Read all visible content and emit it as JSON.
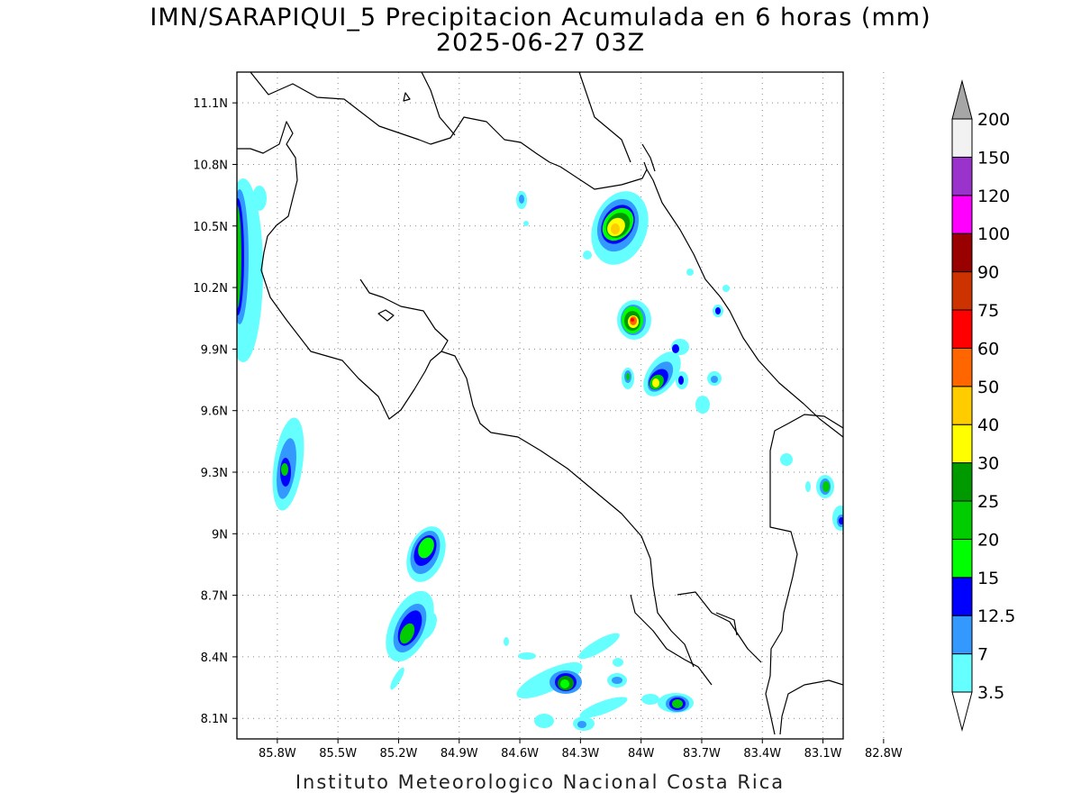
{
  "title": {
    "line1": "IMN/SARAPIQUI_5 Precipitacion Acumulada en 6 horas (mm)",
    "line2": "2025-06-27 03Z"
  },
  "footer": "Instituto Meteorologico Nacional Costa Rica",
  "map": {
    "lon_range": [
      -86.0,
      -83.0
    ],
    "lat_range": [
      8.0,
      11.25
    ],
    "lon_ticks": [
      {
        "v": -85.8,
        "label": "85.8W"
      },
      {
        "v": -85.5,
        "label": "85.5W"
      },
      {
        "v": -85.2,
        "label": "85.2W"
      },
      {
        "v": -84.9,
        "label": "84.9W"
      },
      {
        "v": -84.6,
        "label": "84.6W"
      },
      {
        "v": -84.3,
        "label": "84.3W"
      },
      {
        "v": -84.0,
        "label": "84W"
      },
      {
        "v": -83.7,
        "label": "83.7W"
      },
      {
        "v": -83.4,
        "label": "83.4W"
      },
      {
        "v": -83.1,
        "label": "83.1W"
      },
      {
        "v": -82.8,
        "label": "82.8W"
      }
    ],
    "lat_ticks": [
      {
        "v": 11.1,
        "label": "11.1N"
      },
      {
        "v": 10.8,
        "label": "10.8N"
      },
      {
        "v": 10.5,
        "label": "10.5N"
      },
      {
        "v": 10.2,
        "label": "10.2N"
      },
      {
        "v": 9.9,
        "label": "9.9N"
      },
      {
        "v": 9.6,
        "label": "9.6N"
      },
      {
        "v": 9.3,
        "label": "9.3N"
      },
      {
        "v": 9.0,
        "label": "9N"
      },
      {
        "v": 8.7,
        "label": "8.7N"
      },
      {
        "v": 8.4,
        "label": "8.4N"
      },
      {
        "v": 8.1,
        "label": "8.1N"
      }
    ],
    "grid": "dotted"
  },
  "colorbar": {
    "labels": [
      "3.5",
      "7",
      "12.5",
      "15",
      "20",
      "25",
      "30",
      "40",
      "50",
      "60",
      "75",
      "90",
      "100",
      "120",
      "150",
      "200"
    ],
    "colors": [
      "#66ffff",
      "#3399ff",
      "#0000ff",
      "#00ff00",
      "#00cc00",
      "#009900",
      "#ffff00",
      "#ffcc00",
      "#ff6600",
      "#ff0000",
      "#cc3300",
      "#990000",
      "#ff00ff",
      "#9933cc",
      "#f2f2f2"
    ],
    "over_color": "#a6a6a6",
    "under_color": "#ffffff"
  }
}
